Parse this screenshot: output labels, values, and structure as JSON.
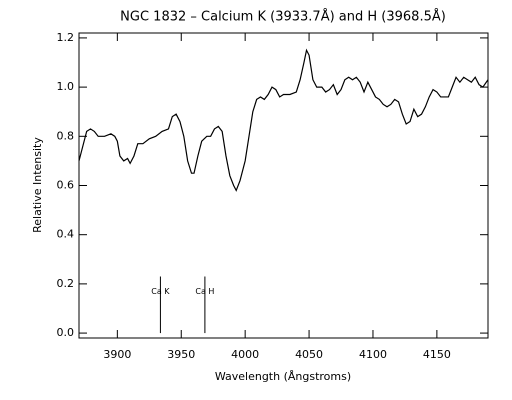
{
  "chart_data": {
    "type": "line",
    "title": "NGC 1832 – Calcium K (3933.7Å) and H (3968.5Å)",
    "x_label": "Wavelength (Ångstroms)",
    "y_label": "Relative Intensity",
    "x": [
      3870,
      3873,
      3876,
      3879,
      3882,
      3885,
      3890,
      3895,
      3898,
      3900,
      3902,
      3905,
      3908,
      3910,
      3913,
      3916,
      3920,
      3925,
      3930,
      3935,
      3940,
      3943,
      3946,
      3949,
      3952,
      3955,
      3958,
      3960,
      3963,
      3966,
      3970,
      3973,
      3976,
      3979,
      3982,
      3985,
      3988,
      3991,
      3993,
      3996,
      4000,
      4003,
      4006,
      4009,
      4012,
      4015,
      4018,
      4021,
      4024,
      4027,
      4030,
      4035,
      4040,
      4043,
      4046,
      4048,
      4050,
      4053,
      4056,
      4060,
      4063,
      4066,
      4069,
      4072,
      4075,
      4078,
      4081,
      4084,
      4087,
      4090,
      4093,
      4096,
      4099,
      4102,
      4105,
      4108,
      4111,
      4114,
      4117,
      4120,
      4123,
      4126,
      4129,
      4132,
      4135,
      4138,
      4141,
      4144,
      4147,
      4150,
      4153,
      4156,
      4159,
      4162,
      4165,
      4168,
      4171,
      4174,
      4177,
      4180,
      4183,
      4186,
      4190
    ],
    "series": [
      {
        "color": "#000000",
        "values": [
          0.7,
          0.76,
          0.82,
          0.83,
          0.82,
          0.8,
          0.8,
          0.81,
          0.8,
          0.78,
          0.72,
          0.7,
          0.71,
          0.69,
          0.72,
          0.77,
          0.77,
          0.79,
          0.8,
          0.82,
          0.83,
          0.88,
          0.89,
          0.86,
          0.8,
          0.7,
          0.65,
          0.65,
          0.72,
          0.78,
          0.8,
          0.8,
          0.83,
          0.84,
          0.82,
          0.72,
          0.64,
          0.6,
          0.58,
          0.62,
          0.7,
          0.8,
          0.9,
          0.95,
          0.96,
          0.95,
          0.97,
          1.0,
          0.99,
          0.96,
          0.97,
          0.97,
          0.98,
          1.03,
          1.1,
          1.15,
          1.13,
          1.03,
          1.0,
          1.0,
          0.98,
          0.99,
          1.01,
          0.97,
          0.99,
          1.03,
          1.04,
          1.03,
          1.04,
          1.02,
          0.98,
          1.02,
          0.99,
          0.96,
          0.95,
          0.93,
          0.92,
          0.93,
          0.95,
          0.94,
          0.89,
          0.85,
          0.86,
          0.91,
          0.88,
          0.89,
          0.92,
          0.96,
          0.99,
          0.98,
          0.96,
          0.96,
          0.96,
          1.0,
          1.04,
          1.02,
          1.04,
          1.03,
          1.02,
          1.04,
          1.01,
          1.0,
          1.03
        ]
      }
    ],
    "xlim": [
      3870,
      4190
    ],
    "ylim": [
      -0.02,
      1.22
    ],
    "xticks": [
      3900,
      3950,
      4000,
      4050,
      4100,
      4150
    ],
    "yticks": [
      {
        "value": 0,
        "label": "0.0"
      },
      0.2,
      0.4,
      0.6,
      0.8,
      {
        "value": 1,
        "label": "1.0"
      },
      1.2
    ],
    "annotations": [
      {
        "label": "Ca K",
        "x": 3933.7,
        "height": 0.23
      },
      {
        "label": "Ca H",
        "x": 3968.5,
        "height": 0.23
      }
    ]
  }
}
